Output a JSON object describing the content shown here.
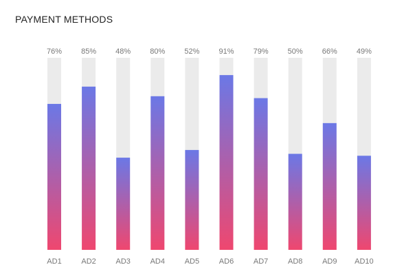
{
  "header": {
    "title": "PAYMENT METHODS"
  },
  "colors": {
    "track": "#ebebeb",
    "gradient_top": "#6b78e6",
    "gradient_bottom": "#ef476f",
    "label": "#777777"
  },
  "chart_data": {
    "type": "bar",
    "title": "PAYMENT METHODS",
    "xlabel": "",
    "ylabel": "",
    "ylim": [
      0,
      100
    ],
    "grid": false,
    "legend": "none",
    "categories": [
      "AD1",
      "AD2",
      "AD3",
      "AD4",
      "AD5",
      "AD6",
      "AD7",
      "AD8",
      "AD9",
      "AD10"
    ],
    "values": [
      76,
      85,
      48,
      80,
      52,
      91,
      79,
      50,
      66,
      49
    ],
    "value_labels": [
      "76%",
      "85%",
      "48%",
      "80%",
      "52%",
      "91%",
      "79%",
      "50%",
      "66%",
      "49%"
    ]
  }
}
